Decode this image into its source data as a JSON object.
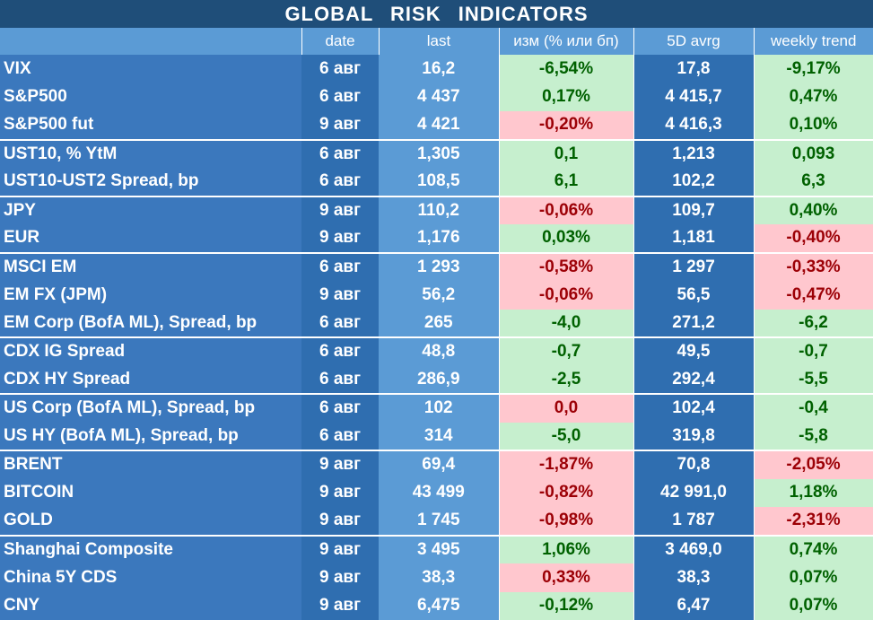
{
  "title": "GLOBAL   RISK   INDICATORS",
  "headers": [
    "",
    "date",
    "last",
    "изм (% или бп)",
    "5D avrg",
    "weekly trend"
  ],
  "colors": {
    "header_dark": "#1f4e79",
    "header_light": "#5b9bd5",
    "positive_bg": "#c6efce",
    "positive_text": "#006100",
    "negative_bg": "#ffc7ce",
    "negative_text": "#9c0006"
  },
  "rows": [
    {
      "name": "VIX",
      "date": "6 авг",
      "last": "16,2",
      "chg": "-6,54%",
      "chg_c": "g",
      "avg": "17,8",
      "wk": "-9,17%",
      "wk_c": "g",
      "gs": false
    },
    {
      "name": "S&P500",
      "date": "6 авг",
      "last": "4 437",
      "chg": "0,17%",
      "chg_c": "g",
      "avg": "4 415,7",
      "wk": "0,47%",
      "wk_c": "g",
      "gs": false
    },
    {
      "name": "S&P500 fut",
      "date": "9 авг",
      "last": "4 421",
      "chg": "-0,20%",
      "chg_c": "r",
      "avg": "4 416,3",
      "wk": "0,10%",
      "wk_c": "g",
      "gs": false
    },
    {
      "name": "UST10, % YtM",
      "date": "6 авг",
      "last": "1,305",
      "chg": "0,1",
      "chg_c": "g",
      "avg": "1,213",
      "wk": "0,093",
      "wk_c": "g",
      "gs": true
    },
    {
      "name": "UST10-UST2 Spread, bp",
      "date": "6 авг",
      "last": "108,5",
      "chg": "6,1",
      "chg_c": "g",
      "avg": "102,2",
      "wk": "6,3",
      "wk_c": "g",
      "gs": false
    },
    {
      "name": "JPY",
      "date": "9 авг",
      "last": "110,2",
      "chg": "-0,06%",
      "chg_c": "r",
      "avg": "109,7",
      "wk": "0,40%",
      "wk_c": "g",
      "gs": true
    },
    {
      "name": "EUR",
      "date": "9 авг",
      "last": "1,176",
      "chg": "0,03%",
      "chg_c": "g",
      "avg": "1,181",
      "wk": "-0,40%",
      "wk_c": "r",
      "gs": false
    },
    {
      "name": "MSCI EM",
      "date": "6 авг",
      "last": "1 293",
      "chg": "-0,58%",
      "chg_c": "r",
      "avg": "1 297",
      "wk": "-0,33%",
      "wk_c": "r",
      "gs": true
    },
    {
      "name": "EM FX (JPM)",
      "date": "9 авг",
      "last": "56,2",
      "chg": "-0,06%",
      "chg_c": "r",
      "avg": "56,5",
      "wk": "-0,47%",
      "wk_c": "r",
      "gs": false
    },
    {
      "name": "EM Corp (BofA ML), Spread, bp",
      "date": "6 авг",
      "last": "265",
      "chg": "-4,0",
      "chg_c": "g",
      "avg": "271,2",
      "wk": "-6,2",
      "wk_c": "g",
      "gs": false
    },
    {
      "name": "CDX IG Spread",
      "date": "6 авг",
      "last": "48,8",
      "chg": "-0,7",
      "chg_c": "g",
      "avg": "49,5",
      "wk": "-0,7",
      "wk_c": "g",
      "gs": true
    },
    {
      "name": "CDX HY Spread",
      "date": "6 авг",
      "last": "286,9",
      "chg": "-2,5",
      "chg_c": "g",
      "avg": "292,4",
      "wk": "-5,5",
      "wk_c": "g",
      "gs": false
    },
    {
      "name": "US Corp (BofA ML), Spread, bp",
      "date": "6 авг",
      "last": "102",
      "chg": "0,0",
      "chg_c": "r",
      "avg": "102,4",
      "wk": "-0,4",
      "wk_c": "g",
      "gs": true
    },
    {
      "name": "US HY (BofA ML), Spread, bp",
      "date": "6 авг",
      "last": "314",
      "chg": "-5,0",
      "chg_c": "g",
      "avg": "319,8",
      "wk": "-5,8",
      "wk_c": "g",
      "gs": false
    },
    {
      "name": "BRENT",
      "date": "9 авг",
      "last": "69,4",
      "chg": "-1,87%",
      "chg_c": "r",
      "avg": "70,8",
      "wk": "-2,05%",
      "wk_c": "r",
      "gs": true
    },
    {
      "name": "BITCOIN",
      "date": "9 авг",
      "last": "43 499",
      "chg": "-0,82%",
      "chg_c": "r",
      "avg": "42 991,0",
      "wk": "1,18%",
      "wk_c": "g",
      "gs": false
    },
    {
      "name": "GOLD",
      "date": "9 авг",
      "last": "1 745",
      "chg": "-0,98%",
      "chg_c": "r",
      "avg": "1 787",
      "wk": "-2,31%",
      "wk_c": "r",
      "gs": false
    },
    {
      "name": "Shanghai Composite",
      "date": "9 авг",
      "last": "3 495",
      "chg": "1,06%",
      "chg_c": "g",
      "avg": "3 469,0",
      "wk": "0,74%",
      "wk_c": "g",
      "gs": true
    },
    {
      "name": "China 5Y CDS",
      "date": "9 авг",
      "last": "38,3",
      "chg": "0,33%",
      "chg_c": "r",
      "avg": "38,3",
      "wk": "0,07%",
      "wk_c": "g",
      "gs": false
    },
    {
      "name": "CNY",
      "date": "9 авг",
      "last": "6,475",
      "chg": "-0,12%",
      "chg_c": "g",
      "avg": "6,47",
      "wk": "0,07%",
      "wk_c": "g",
      "gs": false
    }
  ]
}
